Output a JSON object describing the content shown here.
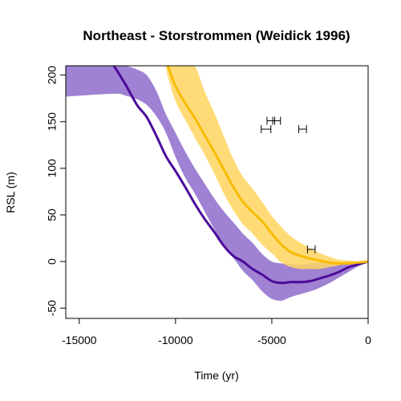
{
  "chart_data": {
    "type": "line",
    "title": "Northeast - Storstrommen (Weidick 1996)",
    "xlabel": "Time (yr)",
    "ylabel": "RSL (m)",
    "xlim": [
      -15700,
      0
    ],
    "ylim": [
      -61,
      210
    ],
    "xticks": [
      -15000,
      -10000,
      -5000,
      0
    ],
    "yticks": [
      -50,
      0,
      50,
      100,
      150,
      200
    ],
    "grid": false,
    "legend": "none",
    "series": [
      {
        "color": "#4B0B9B",
        "band_color": "#8E6CCB",
        "x": [
          -13200,
          -12600,
          -12000,
          -11500,
          -11000,
          -10500,
          -10000,
          -9500,
          -9000,
          -8500,
          -8000,
          -7500,
          -7000,
          -6500,
          -6000,
          -5500,
          -5000,
          -4500,
          -4000,
          -3500,
          -3000,
          -2500,
          -2000,
          -1500,
          -1000,
          -500,
          0
        ],
        "mean": [
          210,
          190,
          168,
          155,
          135,
          113,
          97,
          80,
          62,
          46,
          32,
          17,
          6,
          0,
          -8,
          -14,
          -21,
          -23,
          -22,
          -22,
          -21,
          -18,
          -15,
          -11,
          -6,
          -3,
          0
        ],
        "upper": [
          210,
          210,
          206,
          200,
          183,
          158,
          138,
          118,
          100,
          84,
          68,
          54,
          42,
          30,
          20,
          8,
          0,
          -2,
          -3,
          -3,
          -2,
          -1,
          -1,
          -1,
          0,
          0,
          0
        ],
        "lower": [
          180,
          178,
          174,
          168,
          156,
          138,
          112,
          90,
          73,
          54,
          35,
          18,
          4,
          -10,
          -20,
          -32,
          -40,
          -42,
          -38,
          -35,
          -32,
          -28,
          -23,
          -17,
          -11,
          -5,
          0
        ],
        "band_start": {
          "x": -15700,
          "upper": 210,
          "lower": 177
        }
      },
      {
        "color": "#F7BB00",
        "band_color": "#FFD560",
        "x": [
          -10400,
          -10000,
          -9500,
          -9000,
          -8500,
          -8000,
          -7500,
          -7000,
          -6500,
          -6000,
          -5500,
          -5000,
          -4500,
          -4000,
          -3500,
          -3000,
          -2500,
          -2000,
          -1500,
          -1000,
          -500,
          0
        ],
        "mean": [
          210,
          188,
          170,
          154,
          136,
          118,
          99,
          80,
          64,
          53,
          43,
          30,
          18,
          10,
          6,
          3,
          1,
          -1,
          -2,
          -2,
          -1,
          0
        ],
        "upper": [
          210,
          210,
          210,
          210,
          183,
          160,
          135,
          110,
          91,
          78,
          64,
          49,
          37,
          27,
          20,
          14,
          9,
          5,
          2,
          1,
          0,
          0
        ],
        "lower": [
          198,
          172,
          152,
          133,
          115,
          95,
          73,
          55,
          40,
          30,
          18,
          9,
          -1,
          -6,
          -8,
          -8,
          -8,
          -6,
          -4,
          -2,
          -1,
          0
        ],
        "band_start": {
          "x": -10500,
          "upper": 210,
          "lower": 210
        }
      }
    ],
    "data_points": [
      {
        "x": -5300,
        "y": 142,
        "xmin": -5550,
        "xmax": -5050
      },
      {
        "x": -5050,
        "y": 151,
        "xmin": -5250,
        "xmax": -4850
      },
      {
        "x": -4750,
        "y": 151,
        "xmin": -4950,
        "xmax": -4550
      },
      {
        "x": -3400,
        "y": 142,
        "xmin": -3600,
        "xmax": -3200
      },
      {
        "x": -2950,
        "y": 13,
        "xmin": -3150,
        "xmax": -2750
      }
    ]
  }
}
